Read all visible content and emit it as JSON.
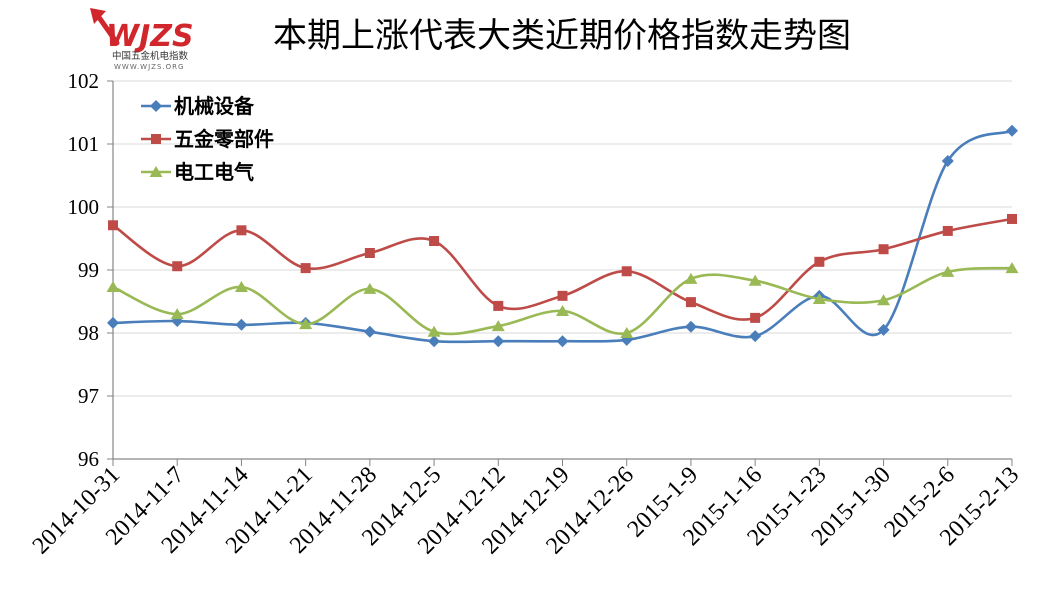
{
  "logo": {
    "mark": "WJZS",
    "name": "中国五金机电指数",
    "url": "WWW.WJZS.ORG",
    "color": "#D0262C"
  },
  "colors": {
    "grid": "#D9D9D9",
    "axis": "#868686"
  },
  "chart_data": {
    "type": "line",
    "title": "本期上涨代表大类近期价格指数走势图",
    "categories": [
      "2014-10-31",
      "2014-11-7",
      "2014-11-14",
      "2014-11-21",
      "2014-11-28",
      "2014-12-5",
      "2014-12-12",
      "2014-12-19",
      "2014-12-26",
      "2015-1-9",
      "2015-1-16",
      "2015-1-23",
      "2015-1-30",
      "2015-2-6",
      "2015-2-13"
    ],
    "ylim": [
      96,
      102
    ],
    "yticks": [
      96,
      97,
      98,
      99,
      100,
      101,
      102
    ],
    "grid": true,
    "smooth": true,
    "legend": "top-left",
    "series": [
      {
        "name": "机械设备",
        "color": "#4A7EBB",
        "marker": "diamond",
        "values": [
          98.16,
          98.19,
          98.13,
          98.16,
          98.02,
          97.87,
          97.87,
          97.87,
          97.89,
          98.1,
          97.95,
          98.59,
          98.05,
          100.73,
          101.21
        ]
      },
      {
        "name": "五金零部件",
        "color": "#BE4B48",
        "marker": "square",
        "values": [
          99.71,
          99.06,
          99.63,
          99.03,
          99.27,
          99.46,
          98.43,
          98.59,
          98.98,
          98.49,
          98.24,
          99.13,
          99.33,
          99.62,
          99.81
        ]
      },
      {
        "name": "电工电气",
        "color": "#98B954",
        "marker": "triangle",
        "values": [
          98.73,
          98.3,
          98.73,
          98.14,
          98.7,
          98.02,
          98.11,
          98.35,
          98.0,
          98.86,
          98.83,
          98.54,
          98.52,
          98.97,
          99.03
        ]
      }
    ]
  }
}
